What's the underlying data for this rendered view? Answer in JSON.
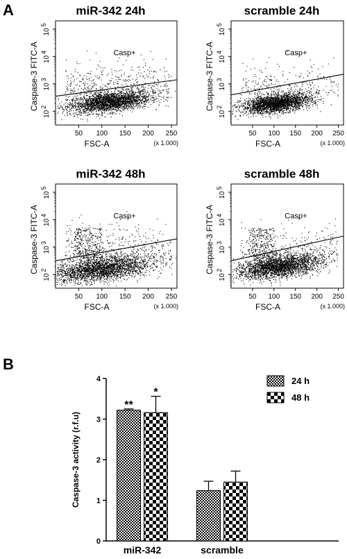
{
  "panel_a_letter": "A",
  "panel_b_letter": "B",
  "colors": {
    "ink": "#000000",
    "background": "#ffffff"
  },
  "chart_data": [
    {
      "type": "scatter",
      "title": "miR-342 24h",
      "xlabel": "FSC-A",
      "ylabel": "Caspase-3 FITC-A",
      "x_multiplier_label": "(x 1.000)",
      "gate_label": "Casp+",
      "x_ticks": [
        "50",
        "100",
        "150",
        "200",
        "250"
      ],
      "y_ticks": [
        "2",
        "3",
        "4",
        "5"
      ],
      "y_tick_base": "10",
      "xlim": [
        0,
        262
      ],
      "ylim_log10": [
        1.5,
        5.3
      ],
      "y_scale": "log",
      "gate_line": {
        "x": [
          0,
          262
        ],
        "y_log10": [
          2.55,
          3.15
        ]
      }
    },
    {
      "type": "scatter",
      "title": "scramble 24h",
      "xlabel": "FSC-A",
      "ylabel": "Caspase-3 FITC-A",
      "x_multiplier_label": "(x 1.000)",
      "gate_label": "Casp+",
      "x_ticks": [
        "50",
        "100",
        "150",
        "200",
        "250"
      ],
      "y_ticks": [
        "2",
        "3",
        "4",
        "5"
      ],
      "y_tick_base": "10",
      "xlim": [
        0,
        262
      ],
      "ylim_log10": [
        1.5,
        5.3
      ],
      "y_scale": "log",
      "gate_line": {
        "x": [
          0,
          262
        ],
        "y_log10": [
          2.6,
          3.35
        ]
      }
    },
    {
      "type": "scatter",
      "title": "miR-342 48h",
      "xlabel": "FSC-A",
      "ylabel": "Caspase-3 FITC-A",
      "x_multiplier_label": "(x 1.000)",
      "gate_label": "Casp+",
      "x_ticks": [
        "50",
        "100",
        "150",
        "200",
        "250"
      ],
      "y_ticks": [
        "2",
        "3",
        "4",
        "5"
      ],
      "y_tick_base": "10",
      "xlim": [
        0,
        262
      ],
      "ylim_log10": [
        1.5,
        5.3
      ],
      "y_scale": "log",
      "gate_line": {
        "x": [
          0,
          262
        ],
        "y_log10": [
          2.5,
          3.3
        ]
      }
    },
    {
      "type": "scatter",
      "title": "scramble 48h",
      "xlabel": "FSC-A",
      "ylabel": "Caspase-3 FITC-A",
      "x_multiplier_label": "(x 1.000)",
      "gate_label": "Casp+",
      "x_ticks": [
        "50",
        "100",
        "150",
        "200",
        "250"
      ],
      "y_ticks": [
        "2",
        "3",
        "4",
        "5"
      ],
      "y_tick_base": "10",
      "xlim": [
        0,
        262
      ],
      "ylim_log10": [
        1.5,
        5.3
      ],
      "y_scale": "log",
      "gate_line": {
        "x": [
          0,
          262
        ],
        "y_log10": [
          2.5,
          3.4
        ]
      }
    },
    {
      "type": "bar",
      "categories": [
        "miR-342",
        "scramble"
      ],
      "series": [
        {
          "name": "24 h",
          "values": [
            3.22,
            1.24
          ],
          "errors": [
            0.03,
            0.23
          ],
          "significance": [
            "**",
            ""
          ],
          "pattern": "fine-checker"
        },
        {
          "name": "48 h",
          "values": [
            3.16,
            1.45
          ],
          "errors": [
            0.4,
            0.27
          ],
          "significance": [
            "*",
            ""
          ],
          "pattern": "coarse-checker"
        }
      ],
      "ylabel": "Caspase-3 activity (r.f.u)",
      "xlabel": "",
      "ylim": [
        0,
        4
      ],
      "y_ticks": [
        "0",
        "1",
        "2",
        "3",
        "4"
      ],
      "legend_position": "top-right"
    }
  ]
}
